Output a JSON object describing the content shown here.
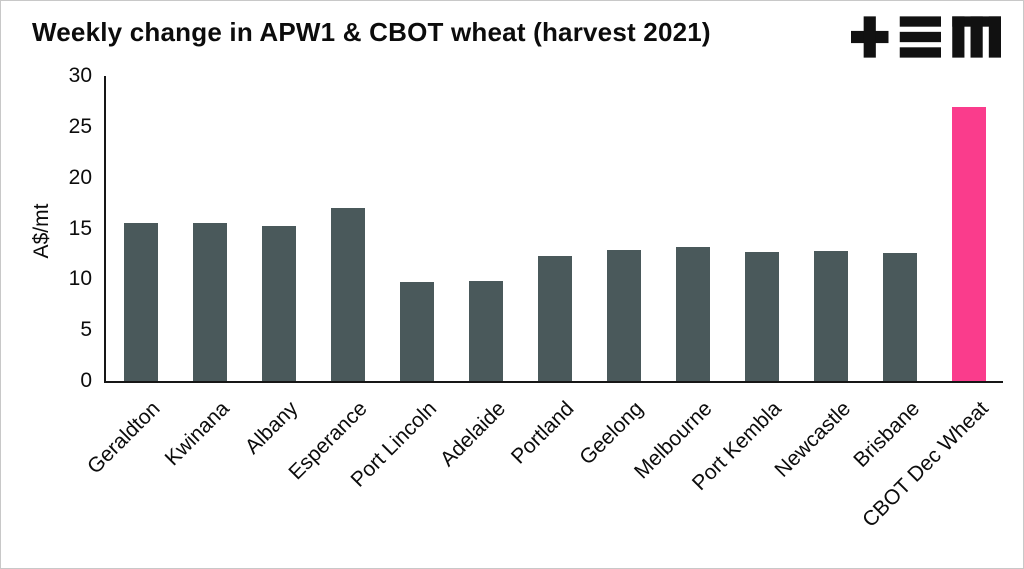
{
  "title": "Weekly change in APW1 & CBOT wheat (harvest 2021)",
  "logo": {
    "name": "tem-logo",
    "color": "#111111"
  },
  "chart_data": {
    "type": "bar",
    "title": "Weekly change in APW1 & CBOT wheat (harvest 2021)",
    "categories": [
      "Geraldton",
      "Kwinana",
      "Albany",
      "Esperance",
      "Port Lincoln",
      "Adelaide",
      "Portland",
      "Geelong",
      "Melbourne",
      "Port Kembla",
      "Newcastle",
      "Brisbane",
      "CBOT Dec Wheat"
    ],
    "values": [
      15.5,
      15.5,
      15.2,
      17,
      9.7,
      9.8,
      12.3,
      12.9,
      13.2,
      12.7,
      12.8,
      12.6,
      27
    ],
    "xlabel": "",
    "ylabel": "A$/mt",
    "ylim": [
      0,
      30
    ],
    "yticks": [
      0,
      5,
      10,
      15,
      20,
      25,
      30
    ],
    "grid": false,
    "legend": null,
    "bar_color": "#4a595b",
    "highlight_color": "#fa3c8c",
    "highlight_index": 12
  }
}
